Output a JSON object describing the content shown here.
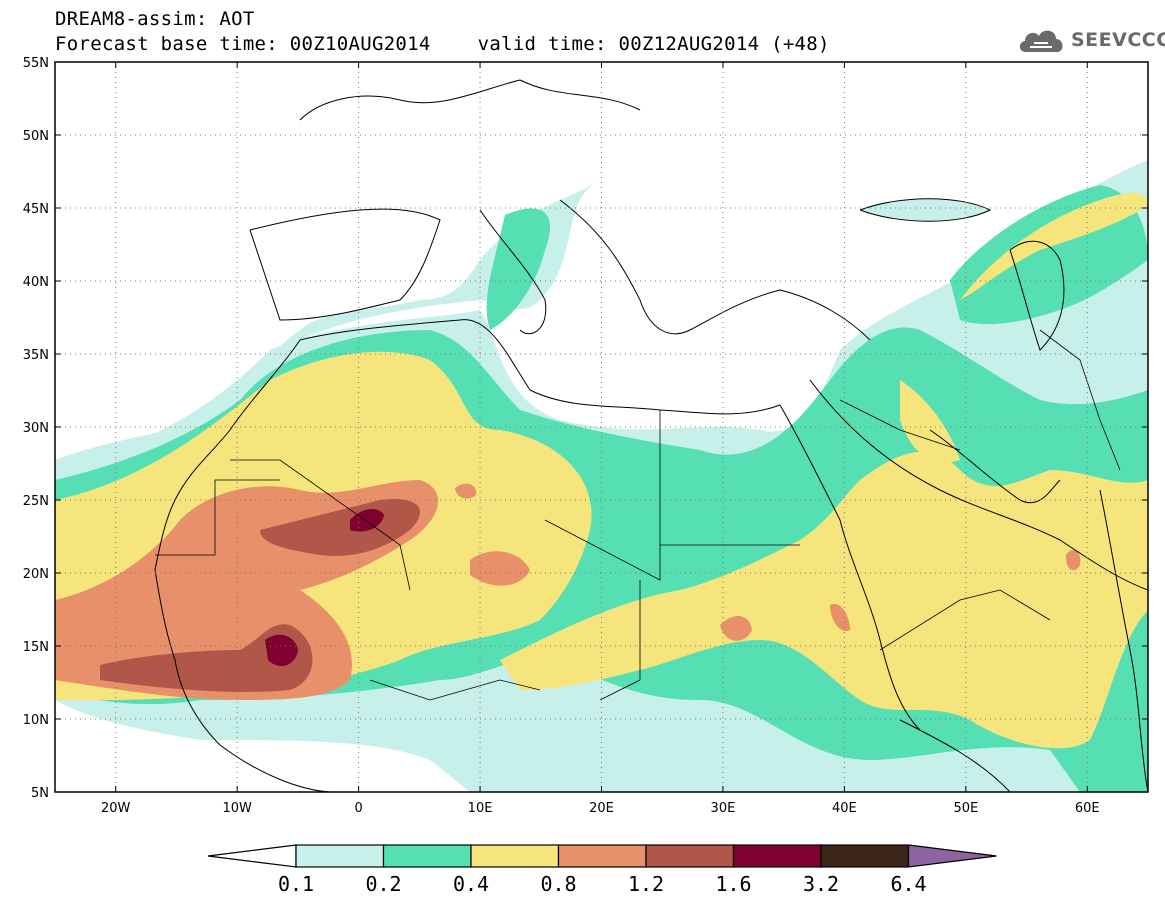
{
  "title": {
    "line1": "DREAM8-assim: AOT",
    "line2": "Forecast base time: 00Z10AUG2014    valid time: 00Z12AUG2014 (+48)"
  },
  "logo": {
    "text": "SEEVCCC",
    "icon": "cloud-icon"
  },
  "map": {
    "lat_labels": [
      "55N",
      "50N",
      "45N",
      "40N",
      "35N",
      "30N",
      "25N",
      "20N",
      "15N",
      "10N",
      "5N"
    ],
    "lon_labels": [
      "20W",
      "10W",
      "0",
      "10E",
      "20E",
      "30E",
      "40E",
      "50E",
      "60E"
    ],
    "lat_range": [
      5,
      55
    ],
    "lon_range": [
      -25,
      65
    ]
  },
  "colorbar": {
    "labels": [
      "0.1",
      "0.2",
      "0.4",
      "0.8",
      "1.2",
      "1.6",
      "3.2",
      "6.4"
    ],
    "colors": [
      "#ffffff",
      "#c8f0eb",
      "#57dfb4",
      "#f5e57c",
      "#e8906a",
      "#b0574a",
      "#800030",
      "#3c2618",
      "#8c64a0"
    ]
  },
  "colors": {
    "c01": "#c8f0eb",
    "c02": "#57dfb4",
    "c04": "#f5e57c",
    "c08": "#e8906a",
    "c12": "#b0574a",
    "c16": "#800030"
  }
}
